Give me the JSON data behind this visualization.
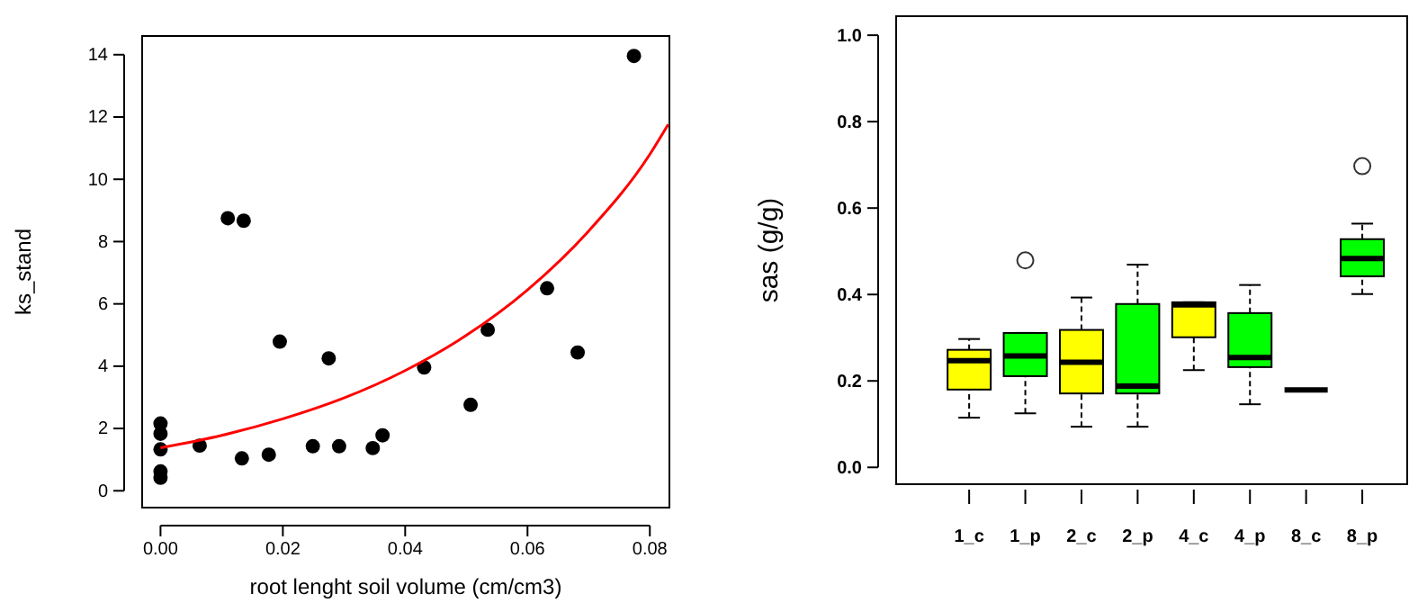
{
  "chart_data": [
    {
      "type": "scatter",
      "xlabel": "root lenght soil volume (cm/cm3)",
      "ylabel": "ks_stand",
      "xlim": [
        -0.003,
        0.0832
      ],
      "ylim": [
        -0.54,
        14.6
      ],
      "xticks": [
        {
          "value": 0,
          "label": "0.00"
        },
        {
          "value": 0.02,
          "label": "0.02"
        },
        {
          "value": 0.04,
          "label": "0.04"
        },
        {
          "value": 0.06,
          "label": "0.06"
        },
        {
          "value": 0.08,
          "label": "0.08"
        }
      ],
      "yticks": [
        0,
        2,
        4,
        6,
        8,
        10,
        12,
        14
      ],
      "series": [
        {
          "type": "scatter",
          "marker": "circle",
          "color": "#000000",
          "x": [
            0,
            0,
            0,
            0,
            0,
            0.0064,
            0.011,
            0.0136,
            0.0133,
            0.0177,
            0.0195,
            0.0249,
            0.0275,
            0.0292,
            0.0347,
            0.0363,
            0.0431,
            0.0507,
            0.0535,
            0.0632,
            0.0682,
            0.0774
          ],
          "values": [
            2.16,
            1.83,
            1.33,
            0.62,
            0.42,
            1.45,
            8.75,
            8.67,
            1.04,
            1.16,
            4.79,
            1.43,
            4.25,
            1.43,
            1.37,
            1.78,
            3.96,
            2.76,
            5.17,
            6.5,
            4.44,
            13.96
          ]
        },
        {
          "type": "line",
          "color": "#ff0000",
          "x": [
            0,
            0.01,
            0.02,
            0.03,
            0.04,
            0.05,
            0.06,
            0.07,
            0.08,
            0.083
          ],
          "values": [
            1.38,
            1.78,
            2.31,
            2.98,
            3.86,
            4.99,
            6.45,
            8.34,
            10.8,
            11.76
          ]
        }
      ]
    },
    {
      "type": "box",
      "ylabel": "sas (g/g)",
      "categories": [
        "1_c",
        "1_p",
        "2_c",
        "2_p",
        "4_c",
        "4_p",
        "8_c",
        "8_p"
      ],
      "ylim": [
        -0.039,
        1.044
      ],
      "yticks": [
        {
          "value": 0,
          "label": "0.0"
        },
        {
          "value": 0.2,
          "label": "0.2"
        },
        {
          "value": 0.4,
          "label": "0.4"
        },
        {
          "value": 0.6,
          "label": "0.6"
        },
        {
          "value": 0.8,
          "label": "0.8"
        },
        {
          "value": 1,
          "label": "1.0"
        }
      ],
      "colors": [
        "#ffff00",
        "#00ff00",
        "#ffff00",
        "#00ff00",
        "#ffff00",
        "#00ff00",
        "#000000",
        "#00ff00"
      ],
      "boxes": [
        {
          "low": 0.115,
          "q1": 0.18,
          "median": 0.247,
          "q3": 0.272,
          "high": 0.297
        },
        {
          "low": 0.125,
          "q1": 0.211,
          "median": 0.258,
          "q3": 0.311,
          "high": 0.311,
          "outliers": [
            0.479
          ]
        },
        {
          "low": 0.094,
          "q1": 0.171,
          "median": 0.243,
          "q3": 0.318,
          "high": 0.393
        },
        {
          "low": 0.094,
          "q1": 0.171,
          "median": 0.188,
          "q3": 0.378,
          "high": 0.469
        },
        {
          "low": 0.225,
          "q1": 0.301,
          "median": 0.376,
          "q3": 0.382,
          "high": 0.382
        },
        {
          "low": 0.146,
          "q1": 0.232,
          "median": 0.254,
          "q3": 0.357,
          "high": 0.422
        },
        {
          "low": 0.179,
          "q1": 0.179,
          "median": 0.179,
          "q3": 0.179,
          "high": 0.179
        },
        {
          "low": 0.401,
          "q1": 0.442,
          "median": 0.483,
          "q3": 0.528,
          "high": 0.564,
          "outliers": [
            0.697
          ]
        }
      ]
    }
  ]
}
